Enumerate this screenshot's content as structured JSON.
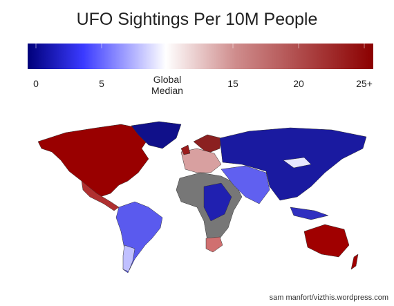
{
  "title": "UFO Sightings Per 10M People",
  "colorbar": {
    "range": [
      0,
      25
    ],
    "stops": [
      {
        "value": 0,
        "color": "#00007a"
      },
      {
        "value": 4,
        "color": "#3a3aff"
      },
      {
        "value": 10,
        "color": "#ffffff"
      },
      {
        "value": 15,
        "color": "#cf8d8d"
      },
      {
        "value": 25,
        "color": "#8b0000"
      }
    ],
    "ticks": [
      0,
      5,
      {
        "value": 10,
        "label": "Global Median"
      },
      15,
      20,
      {
        "value": 25,
        "label": "25+"
      }
    ]
  },
  "credit": "sam manfort/vizthis.wordpress.com"
}
